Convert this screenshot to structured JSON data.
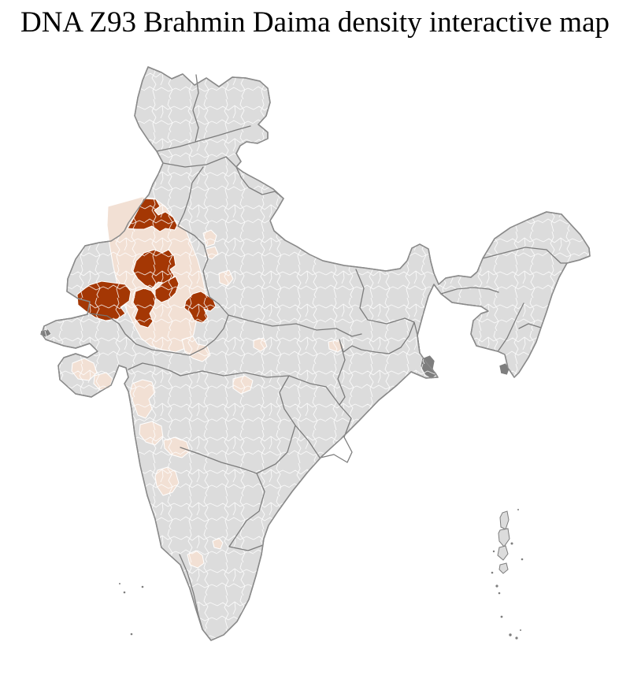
{
  "title": "DNA Z93 Brahmin Daima density interactive map",
  "map": {
    "region_label": "India",
    "colors": {
      "page_background": "#ffffff",
      "land_default": "#dcdcdc",
      "density_high": "#a43704",
      "density_low": "#f2e0d4",
      "metro_dark": "#7e7e7e",
      "district_border": "#ffffff",
      "state_border": "#767676",
      "coast_outline": "#8a8a8a"
    },
    "high_density_districts": [
      "182,252 198,253 203,262 196,267 201,273 210,269 220,276 225,286 222,292 210,290 203,294 193,287 183,291 173,291 162,290 168,280 175,267",
      "173,331 183,321 196,317 206,321 214,317 221,325 223,337 216,342 221,350 213,360 201,358 193,366 184,362 175,354 169,344",
      "197,368 206,360 215,355 223,351 227,360 223,372 215,380 205,384 197,378",
      "98,374 113,362 129,357 144,359 159,361 166,370 164,382 153,390 159,398 149,405 134,407 121,403 109,395 99,387",
      "172,370 183,366 192,369 198,377 196,388 190,398 194,408 188,416 178,413 171,404 175,393 169,384",
      "236,382 245,373 255,370 263,375 271,381 274,389 267,395 259,392 264,403 257,410 247,407 241,397 234,391"
    ],
    "low_density_districts": [
      "137,262 166,254 180,250 196,252 210,262 224,282 236,292 243,310 251,330 257,352 261,372 257,390 250,404 246,424 238,441 223,447 206,444 191,439 179,429 171,414 161,394 151,369 144,339 139,310 136,286",
      "258,296 268,292 275,299 272,310 262,313",
      "262,316 273,313 277,322 269,329 260,325",
      "278,347 291,343 296,354 289,363 279,359",
      "231,431 245,427 251,437 263,439 267,451 257,459 245,455 235,447",
      "296,481 311,477 321,483 318,495 306,500 296,493",
      "322,432 335,429 339,440 331,446 322,441",
      "417,434 431,431 437,441 429,447 418,443",
      "168,487 181,482 193,485 197,498 189,507 193,519 185,531 175,527 170,513 165,499",
      "178,539 193,535 205,541 207,555 197,565 185,561 177,551",
      "208,559 223,555 237,561 241,573 231,581 217,577 209,569",
      "200,597 213,593 223,599 227,613 219,625 207,629 199,617 197,605",
      "238,704 249,699 257,705 259,715 251,721 241,717",
      "270,687 278,683 283,689 280,697 272,695",
      "92,461 107,455 119,461 123,473 113,483 99,481 91,471",
      "120,477 135,473 143,481 139,493 127,495 119,487"
    ],
    "dark_districts": [
      "536,455 546,451 552,458 550,468 554,476 548,481 540,476 534,465",
      "52,420 61,418 65,424 58,428 51,425",
      "634,464 642,461 647,468 644,476 636,474"
    ],
    "andaman_nicobar_islands": [
      "638,651 644,649 646,660 642,672 636,669 635,657",
      "635,673 645,671 647,684 640,694 634,687 633,677",
      "634,695 642,693 645,703 639,711 632,705",
      "635,717 643,715 645,723 639,728 634,723"
    ],
    "island_dots": [
      [
        650,
        690,
        1.5
      ],
      [
        627,
        700,
        1.2
      ],
      [
        658,
        647,
        1
      ],
      [
        663,
        710,
        1.3
      ],
      [
        625,
        727,
        1.3
      ],
      [
        631,
        744,
        1.6
      ],
      [
        634,
        753,
        1.3
      ],
      [
        637,
        783,
        1.4
      ],
      [
        648,
        806,
        1.7
      ],
      [
        656,
        810,
        1.6
      ],
      [
        661,
        800,
        1
      ]
    ],
    "lakshadweep_dots": [
      [
        158,
        752,
        1.3
      ],
      [
        181,
        745,
        1.3
      ],
      [
        152,
        741,
        1
      ],
      [
        167,
        805,
        1.3
      ]
    ]
  }
}
